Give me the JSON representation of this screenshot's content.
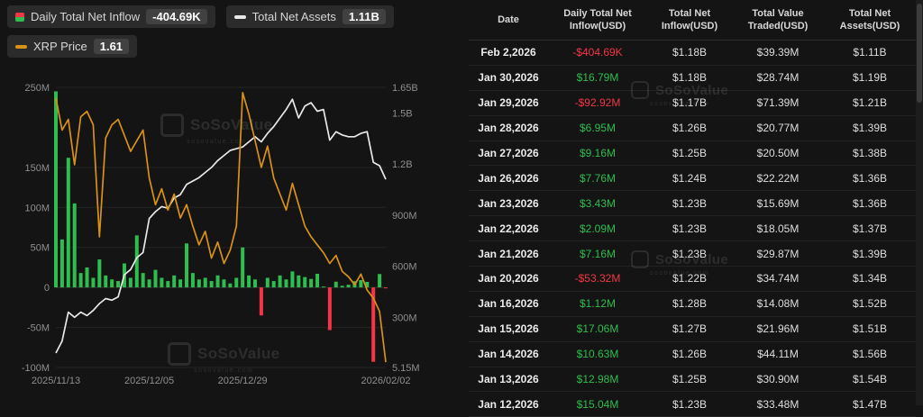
{
  "legend": {
    "inflow": {
      "label": "Daily Total Net Inflow",
      "value": "-404.69K"
    },
    "assets": {
      "label": "Total Net Assets",
      "value": "1.11B"
    },
    "price": {
      "label": "XRP Price",
      "value": "1.61"
    }
  },
  "watermark": {
    "name": "SoSoValue",
    "sub": "sosovalue.com"
  },
  "colors": {
    "background": "#141414",
    "positive": "#2ebd4e",
    "negative": "#f23645",
    "assets_line": "#e8e8e8",
    "price_line": "#d99117",
    "grid": "#242424",
    "axis_text": "#8f8f8f"
  },
  "chart_data": {
    "type": "bar+line combo",
    "x_tick_labels": [
      "2025/11/13",
      "2025/12/05",
      "2025/12/29",
      "2026/02/02"
    ],
    "x_tick_indices": [
      0,
      15,
      30,
      53
    ],
    "left_axis": {
      "unit": "M USD",
      "min": -100,
      "max": 250,
      "labels": [
        "250M",
        "150M",
        "100M",
        "50M",
        "0",
        "-50M",
        "-100M"
      ],
      "values": [
        250,
        150,
        100,
        50,
        0,
        -50,
        -100
      ]
    },
    "right_axis": {
      "unit": "M USD",
      "min": 5.15,
      "max": 1650,
      "labels": [
        "1.65B",
        "1.5B",
        "1.2B",
        "900M",
        "600M",
        "300M",
        "5.15M"
      ],
      "values": [
        1650,
        1500,
        1200,
        900,
        600,
        300,
        5.15
      ]
    },
    "price_axis": {
      "hidden": true,
      "min": 1.59,
      "max": 2.64
    },
    "series": [
      {
        "name": "Daily Total Net Inflow",
        "type": "bar",
        "axis": "left",
        "values": [
          245,
          60,
          162,
          105,
          18,
          25,
          12,
          35,
          15,
          10,
          8,
          30,
          12,
          65,
          18,
          10,
          22,
          12,
          8,
          15,
          10,
          55,
          18,
          10,
          12,
          8,
          15,
          10,
          5,
          12,
          50,
          15,
          10,
          -35,
          12,
          8,
          15,
          10,
          20,
          15.04,
          12.98,
          10.63,
          17.06,
          1.12,
          -53.32,
          7.16,
          2.09,
          3.43,
          7.76,
          9.16,
          6.95,
          -92.92,
          16.79,
          -0.4
        ]
      },
      {
        "name": "Total Net Assets",
        "type": "line",
        "axis": "right",
        "values": [
          90,
          160,
          330,
          300,
          330,
          310,
          340,
          380,
          410,
          400,
          420,
          550,
          580,
          650,
          680,
          880,
          920,
          950,
          940,
          1000,
          1020,
          1080,
          1100,
          1120,
          1150,
          1180,
          1220,
          1250,
          1280,
          1290,
          1300,
          1330,
          1360,
          1330,
          1380,
          1420,
          1470,
          1520,
          1580,
          1470,
          1540,
          1560,
          1510,
          1520,
          1340,
          1390,
          1370,
          1360,
          1360,
          1380,
          1390,
          1210,
          1190,
          1110
        ]
      },
      {
        "name": "XRP Price",
        "type": "line",
        "axis": "price",
        "values": [
          2.6,
          2.48,
          2.52,
          2.35,
          2.53,
          2.55,
          2.5,
          2.08,
          2.45,
          2.5,
          2.52,
          2.46,
          2.4,
          2.44,
          2.48,
          2.3,
          2.2,
          2.26,
          2.18,
          2.24,
          2.15,
          2.2,
          2.12,
          2.05,
          2.1,
          2.0,
          2.06,
          1.98,
          2.03,
          2.12,
          2.62,
          2.54,
          2.44,
          2.34,
          2.42,
          2.3,
          2.24,
          2.18,
          2.28,
          2.2,
          2.12,
          2.08,
          2.05,
          2.02,
          1.98,
          2.01,
          1.95,
          1.93,
          1.9,
          1.94,
          1.88,
          1.85,
          1.8,
          1.61
        ]
      }
    ],
    "legend_position": "top-left",
    "grid": true
  },
  "table": {
    "headers": [
      "Date",
      "Daily Total Net Inflow(USD)",
      "Total Net Inflow(USD)",
      "Total Value Traded(USD)",
      "Total Net Assets(USD)"
    ],
    "rows": [
      [
        "Feb 2,2026",
        "-$404.69K",
        "$1.18B",
        "$39.39M",
        "$1.11B"
      ],
      [
        "Jan 30,2026",
        "$16.79M",
        "$1.18B",
        "$28.74M",
        "$1.19B"
      ],
      [
        "Jan 29,2026",
        "-$92.92M",
        "$1.17B",
        "$71.39M",
        "$1.21B"
      ],
      [
        "Jan 28,2026",
        "$6.95M",
        "$1.26B",
        "$20.77M",
        "$1.39B"
      ],
      [
        "Jan 27,2026",
        "$9.16M",
        "$1.25B",
        "$20.50M",
        "$1.38B"
      ],
      [
        "Jan 26,2026",
        "$7.76M",
        "$1.24B",
        "$22.22M",
        "$1.36B"
      ],
      [
        "Jan 23,2026",
        "$3.43M",
        "$1.23B",
        "$15.69M",
        "$1.36B"
      ],
      [
        "Jan 22,2026",
        "$2.09M",
        "$1.23B",
        "$18.05M",
        "$1.37B"
      ],
      [
        "Jan 21,2026",
        "$7.16M",
        "$1.23B",
        "$29.87M",
        "$1.39B"
      ],
      [
        "Jan 20,2026",
        "-$53.32M",
        "$1.22B",
        "$34.74M",
        "$1.34B"
      ],
      [
        "Jan 16,2026",
        "$1.12M",
        "$1.28B",
        "$14.08M",
        "$1.52B"
      ],
      [
        "Jan 15,2026",
        "$17.06M",
        "$1.27B",
        "$21.96M",
        "$1.51B"
      ],
      [
        "Jan 14,2026",
        "$10.63M",
        "$1.26B",
        "$44.11M",
        "$1.56B"
      ],
      [
        "Jan 13,2026",
        "$12.98M",
        "$1.25B",
        "$30.90M",
        "$1.54B"
      ],
      [
        "Jan 12,2026",
        "$15.04M",
        "$1.23B",
        "$33.48M",
        "$1.47B"
      ]
    ]
  }
}
